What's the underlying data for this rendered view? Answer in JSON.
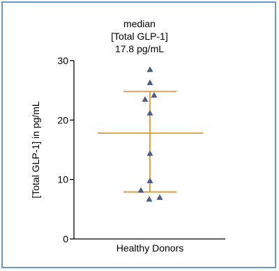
{
  "chart_data": {
    "type": "scatter",
    "title_lines": [
      "median",
      "[Total  GLP-1]",
      "17.8 pg/mL"
    ],
    "ylabel": "[Total GLP-1] in pg/mL",
    "categories": [
      "Healthy Donors"
    ],
    "ylim": [
      0,
      30
    ],
    "yticks": [
      0,
      10,
      20,
      30
    ],
    "points": [
      28.5,
      26.3,
      24.2,
      23.5,
      21.2,
      14.4,
      9.8,
      8.2,
      7.0,
      6.7
    ],
    "median": 17.8,
    "error_bar": {
      "upper": 24.8,
      "lower": 7.9
    },
    "colors": {
      "points": "#4a5e86",
      "lines": "#e5962f",
      "axis": "#000000",
      "border": "#6b97c7"
    }
  }
}
